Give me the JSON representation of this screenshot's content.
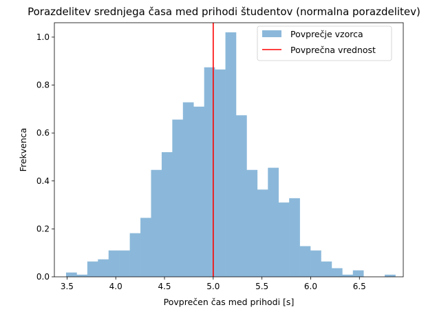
{
  "chart_data": {
    "type": "bar",
    "title": "Porazdelitev srednjega časa med prihodi študentov (normalna porazdelitev)",
    "xlabel": "Povprečen čas med prihodi [s]",
    "ylabel": "Frekvenca",
    "xlim": [
      3.37,
      6.95
    ],
    "ylim": [
      0,
      1.06
    ],
    "xticks": [
      "3.5",
      "4.0",
      "4.5",
      "5.0",
      "5.5",
      "6.0",
      "6.5"
    ],
    "yticks": [
      "0.0",
      "0.2",
      "0.4",
      "0.6",
      "0.8",
      "1.0"
    ],
    "grid": false,
    "legend_position": "top-right",
    "bin_width": 0.109,
    "bins": [
      {
        "x0": 3.49,
        "value": 0.018
      },
      {
        "x0": 3.599,
        "value": 0.009
      },
      {
        "x0": 3.708,
        "value": 0.064
      },
      {
        "x0": 3.817,
        "value": 0.073
      },
      {
        "x0": 3.926,
        "value": 0.11
      },
      {
        "x0": 4.035,
        "value": 0.11
      },
      {
        "x0": 4.144,
        "value": 0.182
      },
      {
        "x0": 4.253,
        "value": 0.246
      },
      {
        "x0": 4.362,
        "value": 0.446
      },
      {
        "x0": 4.471,
        "value": 0.52
      },
      {
        "x0": 4.58,
        "value": 0.656
      },
      {
        "x0": 4.689,
        "value": 0.728
      },
      {
        "x0": 4.798,
        "value": 0.71
      },
      {
        "x0": 4.907,
        "value": 0.874
      },
      {
        "x0": 5.016,
        "value": 0.865
      },
      {
        "x0": 5.125,
        "value": 1.02
      },
      {
        "x0": 5.234,
        "value": 0.674
      },
      {
        "x0": 5.343,
        "value": 0.446
      },
      {
        "x0": 5.452,
        "value": 0.364
      },
      {
        "x0": 5.561,
        "value": 0.455
      },
      {
        "x0": 5.67,
        "value": 0.31
      },
      {
        "x0": 5.779,
        "value": 0.328
      },
      {
        "x0": 5.888,
        "value": 0.128
      },
      {
        "x0": 5.997,
        "value": 0.11
      },
      {
        "x0": 6.106,
        "value": 0.064
      },
      {
        "x0": 6.215,
        "value": 0.036
      },
      {
        "x0": 6.324,
        "value": 0.009
      },
      {
        "x0": 6.433,
        "value": 0.027
      },
      {
        "x0": 6.542,
        "value": 0
      },
      {
        "x0": 6.651,
        "value": 0
      },
      {
        "x0": 6.76,
        "value": 0.009
      }
    ],
    "mean_line": {
      "x": 5.0
    },
    "series": [
      {
        "name": "Povprečje vzorca",
        "color": "#8bb8da"
      },
      {
        "name": "Povprečna vrednost",
        "color": "#ff0000"
      }
    ]
  }
}
